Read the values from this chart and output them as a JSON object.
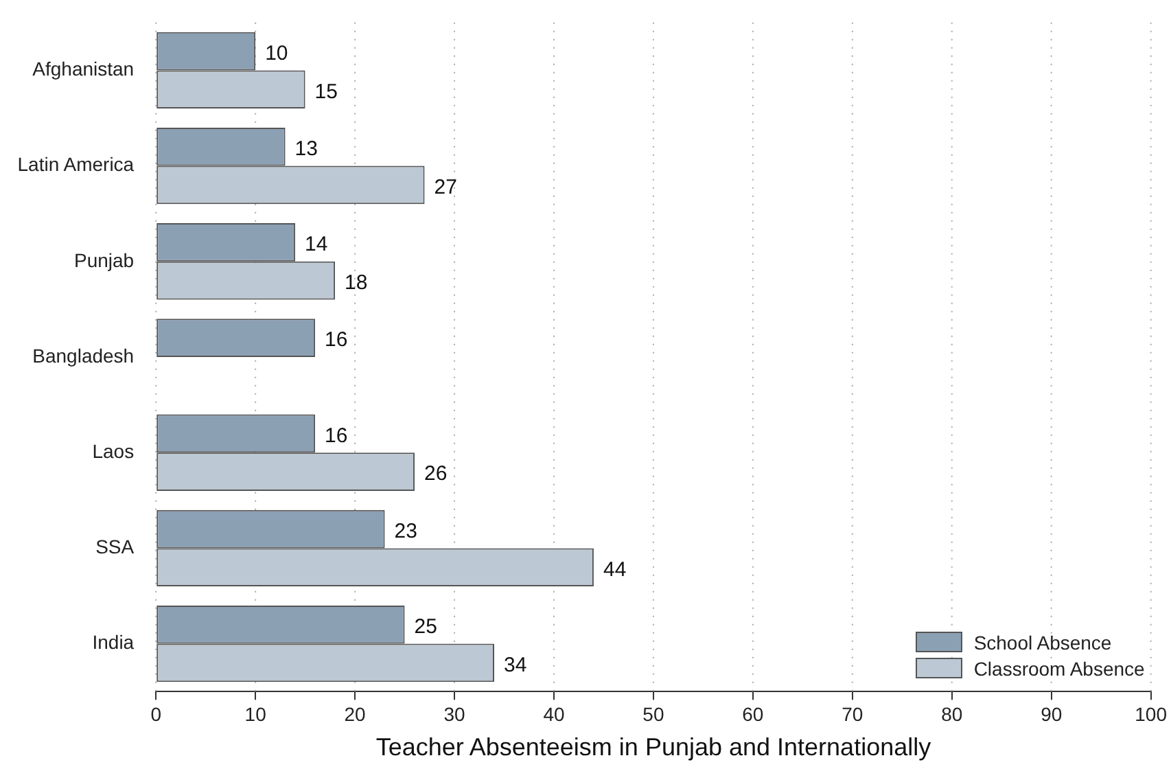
{
  "chart_data": {
    "type": "bar",
    "orientation": "horizontal",
    "xlabel": "Teacher Absenteeism in Punjab and Internationally",
    "categories": [
      "Afghanistan",
      "Latin America",
      "Punjab",
      "Bangladesh",
      "Laos",
      "SSA",
      "India"
    ],
    "series": [
      {
        "name": "School Absence",
        "color": "#8ca0b4",
        "values": [
          10,
          13,
          14,
          16,
          16,
          23,
          25
        ]
      },
      {
        "name": "Classroom Absence",
        "color": "#bcc8d4",
        "values": [
          15,
          27,
          18,
          null,
          26,
          44,
          34
        ]
      }
    ],
    "xlim": [
      0,
      100
    ],
    "xticks": [
      0,
      10,
      20,
      30,
      40,
      50,
      60,
      70,
      80,
      90,
      100
    ],
    "grid": "x",
    "legend": "bottom right",
    "data_labels": true
  }
}
